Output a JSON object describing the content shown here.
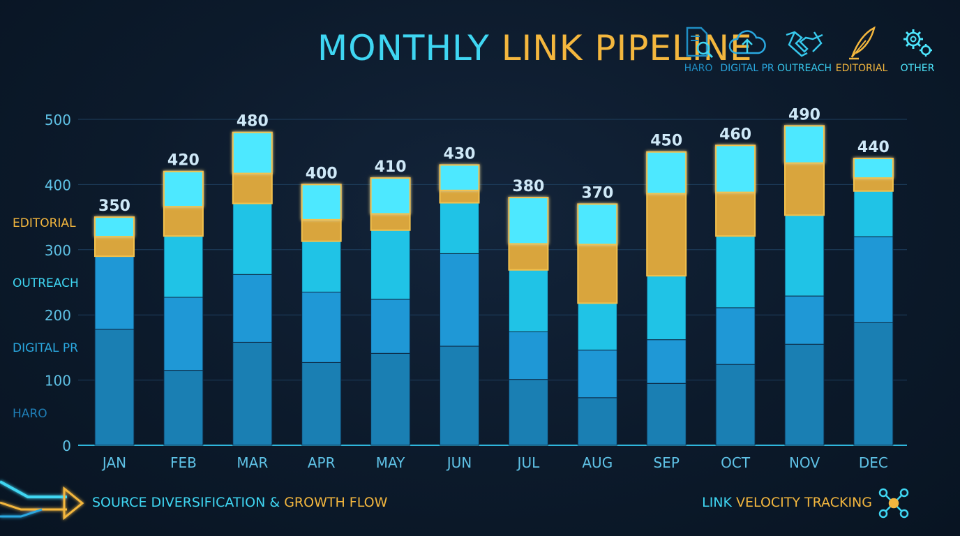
{
  "title": {
    "part1": "MONTHLY",
    "part2": "LINK PIPELINE"
  },
  "legend": [
    {
      "name": "HARO",
      "icon": "document-search-icon",
      "color": "#1f8ec4"
    },
    {
      "name": "DIGITAL PR",
      "icon": "cloud-upload-icon",
      "color": "#2aa8e0"
    },
    {
      "name": "OUTREACH",
      "icon": "handshake-icon",
      "color": "#37c8ec"
    },
    {
      "name": "EDITORIAL",
      "icon": "quill-icon",
      "color": "#f4b73e"
    },
    {
      "name": "OTHER",
      "icon": "gears-icon",
      "color": "#4ee8ff"
    }
  ],
  "side_labels": [
    {
      "text": "EDITORIAL",
      "color": "#f4b73e"
    },
    {
      "text": "OUTREACH",
      "color": "#3fd6f2"
    },
    {
      "text": "DIGITAL PR",
      "color": "#2aa8e0"
    },
    {
      "text": "HARO",
      "color": "#1f7fb8"
    }
  ],
  "footer": {
    "left_part1": "SOURCE DIVERSIFICATION &",
    "left_part2": "GROWTH FLOW",
    "right_part1": "LINK",
    "right_part2": "VELOCITY TRACKING",
    "left_icon": "arrow-flow-icon",
    "right_icon": "network-nodes-icon"
  },
  "chart_data": {
    "type": "bar",
    "stacked": true,
    "categories": [
      "JAN",
      "FEB",
      "MAR",
      "APR",
      "MAY",
      "JUN",
      "JUL",
      "AUG",
      "SEP",
      "OCT",
      "NOV",
      "DEC"
    ],
    "series": [
      {
        "name": "HARO",
        "values": [
          178,
          115,
          158,
          127,
          141,
          152,
          101,
          73,
          95,
          124,
          155,
          188
        ],
        "color": "#1a7fb3"
      },
      {
        "name": "DIGITAL PR",
        "values": [
          112,
          112,
          104,
          108,
          83,
          142,
          73,
          73,
          67,
          87,
          74,
          132
        ],
        "color": "#1f98d6"
      },
      {
        "name": "OUTREACH",
        "values": [
          0,
          94,
          109,
          78,
          106,
          78,
          95,
          72,
          98,
          110,
          124,
          70
        ],
        "color": "#20c3e6"
      },
      {
        "name": "EDITORIAL",
        "values": [
          30,
          45,
          46,
          33,
          25,
          19,
          40,
          90,
          126,
          67,
          80,
          20
        ],
        "color": "#d9a53d"
      },
      {
        "name": "OTHER",
        "values": [
          30,
          54,
          63,
          54,
          55,
          39,
          71,
          62,
          64,
          72,
          57,
          30
        ],
        "color": "#4ee8ff"
      }
    ],
    "totals": [
      350,
      420,
      480,
      400,
      410,
      430,
      380,
      370,
      450,
      460,
      490,
      440
    ],
    "y_ticks": [
      0,
      100,
      200,
      300,
      400,
      500
    ],
    "ylim": [
      0,
      500
    ],
    "grid": true,
    "legend_position": "top-right"
  }
}
